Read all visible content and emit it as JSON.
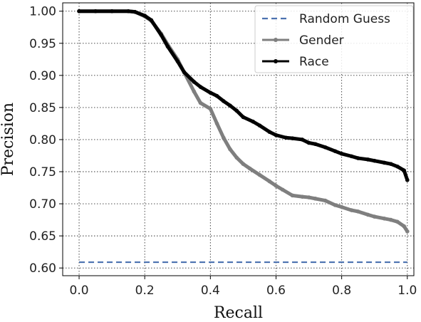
{
  "chart_data": {
    "type": "line",
    "xlabel": "Recall",
    "ylabel": "Precision",
    "xlim": [
      -0.05,
      1.02
    ],
    "ylim": [
      0.588,
      1.013
    ],
    "grid": true,
    "grid_style": "dotted",
    "legend_position": "top-right",
    "x_ticks": [
      "0.0",
      "0.2",
      "0.4",
      "0.6",
      "0.8",
      "1.0"
    ],
    "x_tick_values": [
      0.0,
      0.2,
      0.4,
      0.6,
      0.8,
      1.0
    ],
    "y_ticks": [
      "0.60",
      "0.65",
      "0.70",
      "0.75",
      "0.80",
      "0.85",
      "0.90",
      "0.95",
      "1.00"
    ],
    "y_tick_values": [
      0.6,
      0.65,
      0.7,
      0.75,
      0.8,
      0.85,
      0.9,
      0.95,
      1.0
    ],
    "series": [
      {
        "name": "Random Guess",
        "color": "#4c72b0",
        "style": "dashed",
        "x": [
          0.0,
          1.0
        ],
        "y": [
          0.609,
          0.609
        ]
      },
      {
        "name": "Gender",
        "color": "#7f7f7f",
        "style": "solid-marker",
        "x": [
          0.0,
          0.05,
          0.1,
          0.15,
          0.17,
          0.2,
          0.22,
          0.25,
          0.27,
          0.3,
          0.32,
          0.35,
          0.37,
          0.4,
          0.42,
          0.44,
          0.46,
          0.48,
          0.5,
          0.52,
          0.55,
          0.58,
          0.6,
          0.62,
          0.65,
          0.68,
          0.7,
          0.72,
          0.75,
          0.78,
          0.8,
          0.83,
          0.85,
          0.88,
          0.9,
          0.93,
          0.95,
          0.97,
          0.99,
          1.0
        ],
        "y": [
          1.0,
          1.0,
          1.0,
          1.0,
          0.999,
          0.992,
          0.985,
          0.965,
          0.948,
          0.925,
          0.905,
          0.875,
          0.857,
          0.848,
          0.825,
          0.803,
          0.785,
          0.772,
          0.762,
          0.755,
          0.745,
          0.735,
          0.728,
          0.722,
          0.713,
          0.711,
          0.71,
          0.708,
          0.705,
          0.698,
          0.695,
          0.69,
          0.688,
          0.683,
          0.68,
          0.677,
          0.675,
          0.672,
          0.665,
          0.657
        ]
      },
      {
        "name": "Race",
        "color": "#000000",
        "style": "solid-marker",
        "x": [
          0.0,
          0.05,
          0.1,
          0.15,
          0.17,
          0.2,
          0.22,
          0.25,
          0.27,
          0.3,
          0.32,
          0.35,
          0.37,
          0.4,
          0.42,
          0.44,
          0.46,
          0.48,
          0.5,
          0.53,
          0.55,
          0.58,
          0.6,
          0.63,
          0.65,
          0.68,
          0.7,
          0.72,
          0.75,
          0.78,
          0.8,
          0.83,
          0.85,
          0.88,
          0.9,
          0.93,
          0.95,
          0.97,
          0.99,
          1.0
        ],
        "y": [
          1.0,
          1.0,
          1.0,
          1.0,
          0.999,
          0.993,
          0.986,
          0.963,
          0.945,
          0.922,
          0.905,
          0.89,
          0.882,
          0.873,
          0.868,
          0.86,
          0.853,
          0.845,
          0.835,
          0.828,
          0.822,
          0.812,
          0.807,
          0.803,
          0.802,
          0.8,
          0.795,
          0.793,
          0.788,
          0.782,
          0.778,
          0.774,
          0.771,
          0.769,
          0.767,
          0.764,
          0.762,
          0.758,
          0.752,
          0.737
        ]
      }
    ]
  }
}
